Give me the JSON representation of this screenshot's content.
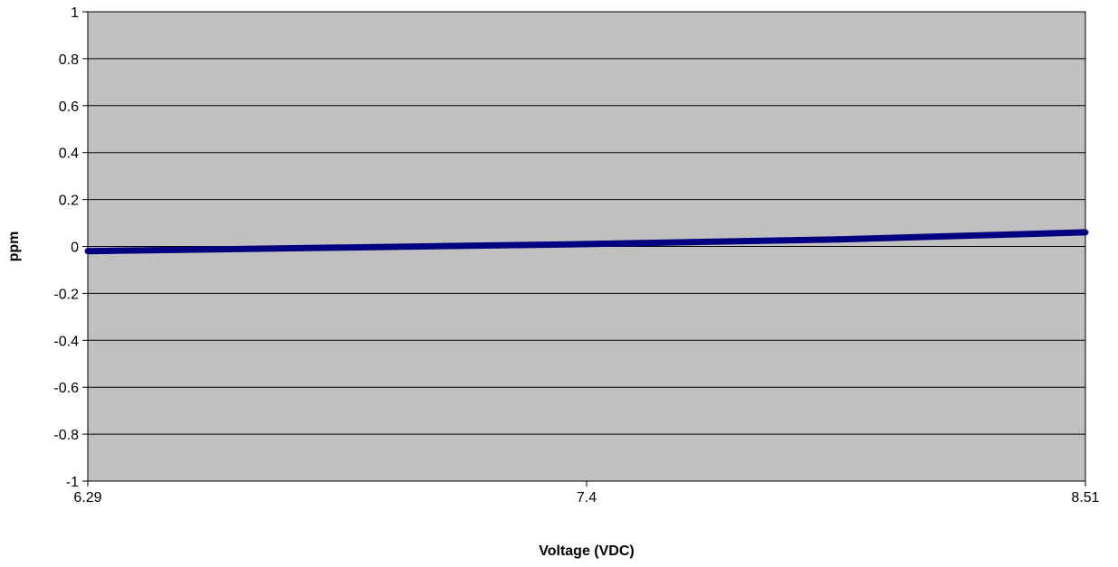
{
  "chart_data": {
    "type": "line",
    "title": "",
    "xlabel": "Voltage (VDC)",
    "ylabel": "ppm",
    "x_tick_labels": [
      "6.29",
      "7.4",
      "8.51"
    ],
    "y_tick_labels": [
      "1",
      "0.8",
      "0.6",
      "0.4",
      "0.2",
      "0",
      "-0.2",
      "-0.4",
      "-0.6",
      "-0.8",
      "-1"
    ],
    "xlim": [
      6.29,
      8.51
    ],
    "ylim": [
      -1,
      1
    ],
    "grid": "horizontal",
    "legend": "none",
    "series": [
      {
        "x": [
          6.29,
          6.85,
          7.4,
          7.96,
          8.51
        ],
        "y": [
          -0.02,
          -0.005,
          0.01,
          0.03,
          0.06
        ],
        "color": "#000080"
      }
    ],
    "colors": {
      "plot_background": "#c0c0c0",
      "gridline": "#000000",
      "line": "#000080"
    }
  }
}
